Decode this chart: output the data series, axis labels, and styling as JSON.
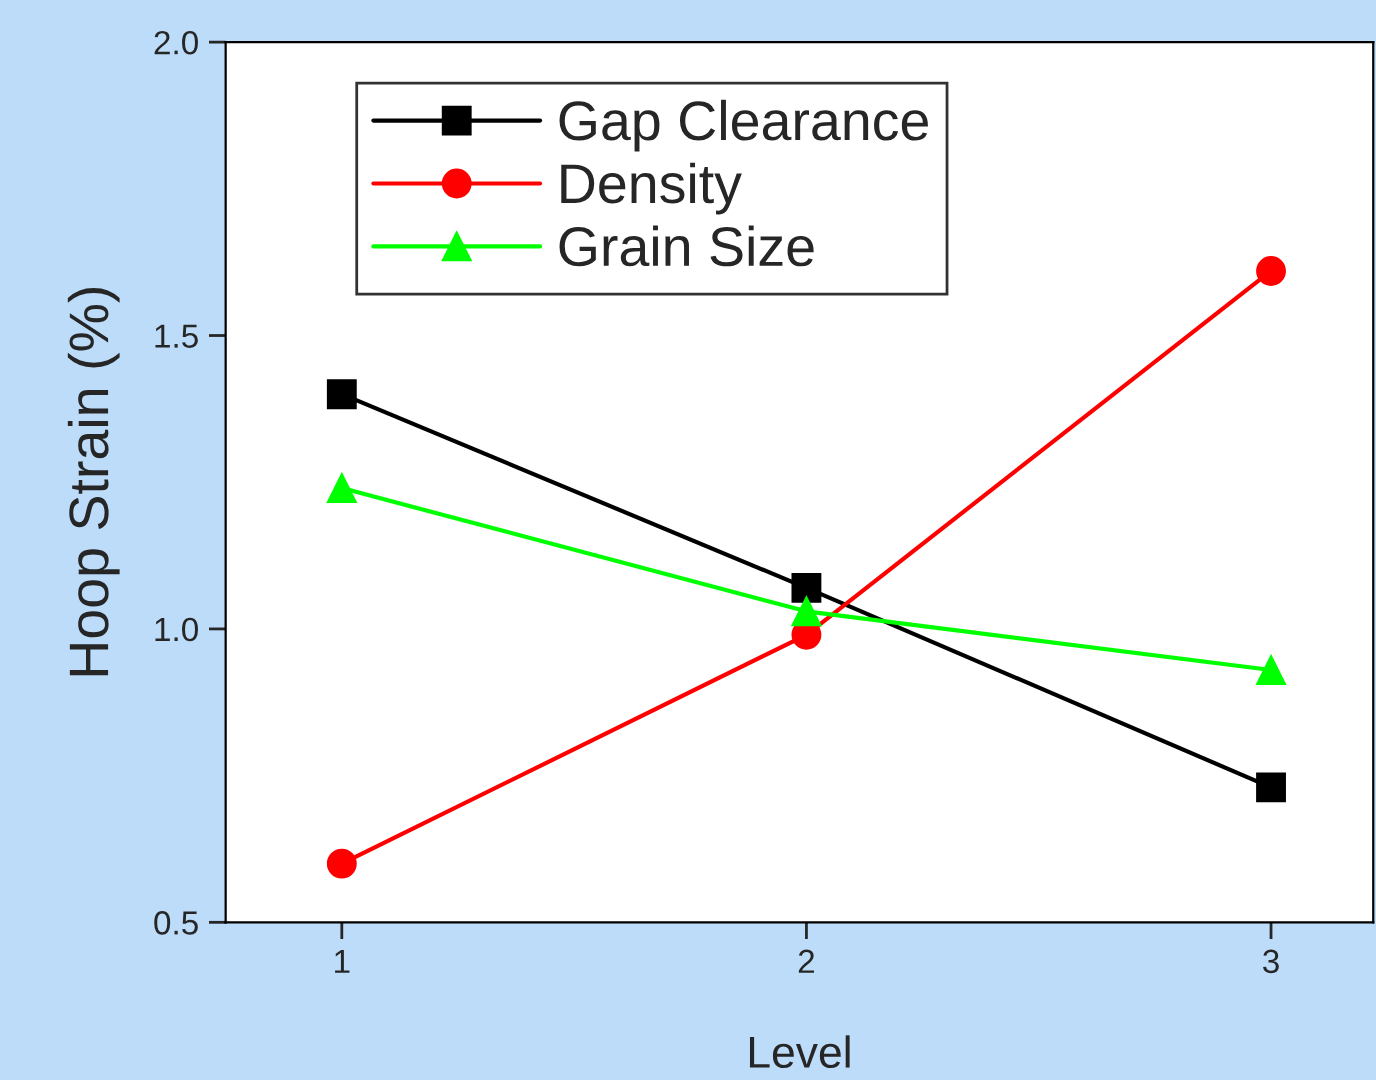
{
  "chart_data": {
    "type": "line",
    "xlabel": "Level",
    "ylabel": "Hoop Strain (%)",
    "x": [
      1,
      2,
      3
    ],
    "series": [
      {
        "name": "Gap Clearance",
        "color": "#000000",
        "marker": "square",
        "values": [
          1.4,
          1.07,
          0.73
        ]
      },
      {
        "name": "Density",
        "color": "#ff0000",
        "marker": "circle",
        "values": [
          0.6,
          0.99,
          1.61
        ]
      },
      {
        "name": "Grain Size",
        "color": "#00ff00",
        "marker": "triangle",
        "values": [
          1.24,
          1.03,
          0.93
        ]
      }
    ],
    "xlim": [
      0.75,
      3.22
    ],
    "xticks": [
      1,
      2,
      3
    ],
    "ylim": [
      0.5,
      2.0
    ],
    "yticks": [
      0.5,
      {
        "value": 1,
        "label": "1.0"
      },
      1.5,
      {
        "value": 2,
        "label": "2.0"
      }
    ],
    "grid": false,
    "legend": "top left",
    "line_style": "solid"
  }
}
